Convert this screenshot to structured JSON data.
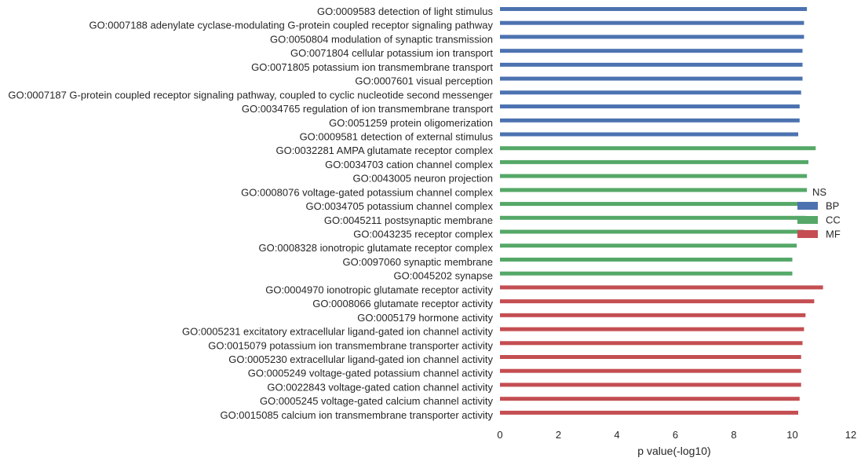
{
  "chart_data": {
    "type": "bar",
    "orientation": "horizontal",
    "xlabel": "p value(-log10)",
    "xlim": [
      0,
      12
    ],
    "xticks": [
      0,
      2,
      4,
      6,
      8,
      10,
      12
    ],
    "grid": false,
    "legend": {
      "title": "NS",
      "placement": "right",
      "entries": [
        {
          "name": "BP",
          "color": "#4c72b0"
        },
        {
          "name": "CC",
          "color": "#55a868"
        },
        {
          "name": "MF",
          "color": "#c44e52"
        }
      ]
    },
    "categories": [
      {
        "label": "GO:0009583 detection of light stimulus",
        "value": 10.5,
        "group": "BP"
      },
      {
        "label": "GO:0007188 adenylate cyclase-modulating G-protein coupled receptor signaling pathway",
        "value": 10.4,
        "group": "BP"
      },
      {
        "label": "GO:0050804 modulation of synaptic transmission",
        "value": 10.4,
        "group": "BP"
      },
      {
        "label": "GO:0071804 cellular potassium ion transport",
        "value": 10.35,
        "group": "BP"
      },
      {
        "label": "GO:0071805 potassium ion transmembrane transport",
        "value": 10.35,
        "group": "BP"
      },
      {
        "label": "GO:0007601 visual perception",
        "value": 10.35,
        "group": "BP"
      },
      {
        "label": "GO:0007187 G-protein coupled receptor signaling pathway, coupled to cyclic nucleotide second messenger",
        "value": 10.3,
        "group": "BP"
      },
      {
        "label": "GO:0034765 regulation of ion transmembrane transport",
        "value": 10.25,
        "group": "BP"
      },
      {
        "label": "GO:0051259 protein oligomerization",
        "value": 10.25,
        "group": "BP"
      },
      {
        "label": "GO:0009581 detection of external stimulus",
        "value": 10.2,
        "group": "BP"
      },
      {
        "label": "GO:0032281 AMPA glutamate receptor complex",
        "value": 10.8,
        "group": "CC"
      },
      {
        "label": "GO:0034703 cation channel complex",
        "value": 10.55,
        "group": "CC"
      },
      {
        "label": "GO:0043005 neuron projection",
        "value": 10.5,
        "group": "CC"
      },
      {
        "label": "GO:0008076 voltage-gated potassium channel complex",
        "value": 10.5,
        "group": "CC"
      },
      {
        "label": "GO:0034705 potassium channel complex",
        "value": 10.45,
        "group": "CC"
      },
      {
        "label": "GO:0045211 postsynaptic membrane",
        "value": 10.45,
        "group": "CC"
      },
      {
        "label": "GO:0043235 receptor complex",
        "value": 10.4,
        "group": "CC"
      },
      {
        "label": "GO:0008328 ionotropic glutamate receptor complex",
        "value": 10.15,
        "group": "CC"
      },
      {
        "label": "GO:0097060 synaptic membrane",
        "value": 10.0,
        "group": "CC"
      },
      {
        "label": "GO:0045202 synapse",
        "value": 10.0,
        "group": "CC"
      },
      {
        "label": "GO:0004970 ionotropic glutamate receptor activity",
        "value": 11.05,
        "group": "MF"
      },
      {
        "label": "GO:0008066 glutamate receptor activity",
        "value": 10.75,
        "group": "MF"
      },
      {
        "label": "GO:0005179 hormone activity",
        "value": 10.45,
        "group": "MF"
      },
      {
        "label": "GO:0005231 excitatory extracellular ligand-gated ion channel activity",
        "value": 10.4,
        "group": "MF"
      },
      {
        "label": "GO:0015079 potassium ion transmembrane transporter activity",
        "value": 10.35,
        "group": "MF"
      },
      {
        "label": "GO:0005230 extracellular ligand-gated ion channel activity",
        "value": 10.3,
        "group": "MF"
      },
      {
        "label": "GO:0005249 voltage-gated potassium channel activity",
        "value": 10.3,
        "group": "MF"
      },
      {
        "label": "GO:0022843 voltage-gated cation channel activity",
        "value": 10.3,
        "group": "MF"
      },
      {
        "label": "GO:0005245 voltage-gated calcium channel activity",
        "value": 10.25,
        "group": "MF"
      },
      {
        "label": "GO:0015085 calcium ion transmembrane transporter activity",
        "value": 10.2,
        "group": "MF"
      }
    ]
  }
}
